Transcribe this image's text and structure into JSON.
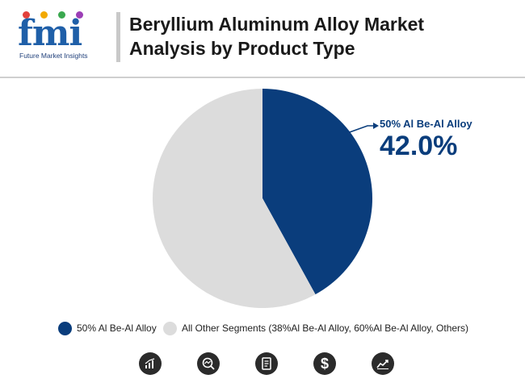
{
  "header": {
    "logo_letters": "fmi",
    "logo_caption": "Future Market Insights",
    "title_line1": "Beryllium Aluminum Alloy Market",
    "title_line2": "Analysis by Product Type"
  },
  "chart_data": {
    "type": "pie",
    "slices": [
      {
        "name": "50% Al Be-Al Alloy",
        "value": 42.0,
        "color": "#0a3d7c"
      },
      {
        "name": "All Other Segments (38%Al Be-Al Alloy, 60%Al Be-Al Alloy, Others)",
        "value": 58.0,
        "color": "#dcdcdc"
      }
    ],
    "callout": {
      "label": "50% Al Be-Al Alloy",
      "value_text": "42.0%"
    },
    "legend_position": "bottom"
  },
  "colors": {
    "accent": "#0a3d7c",
    "other": "#dcdcdc",
    "icon_bg": "#2b2b2b",
    "logo": "#1f5fa8"
  },
  "footer_icons": [
    "bar-chart-icon",
    "magnifier-chart-icon",
    "report-document-icon",
    "dollar-icon",
    "line-chart-icon"
  ]
}
